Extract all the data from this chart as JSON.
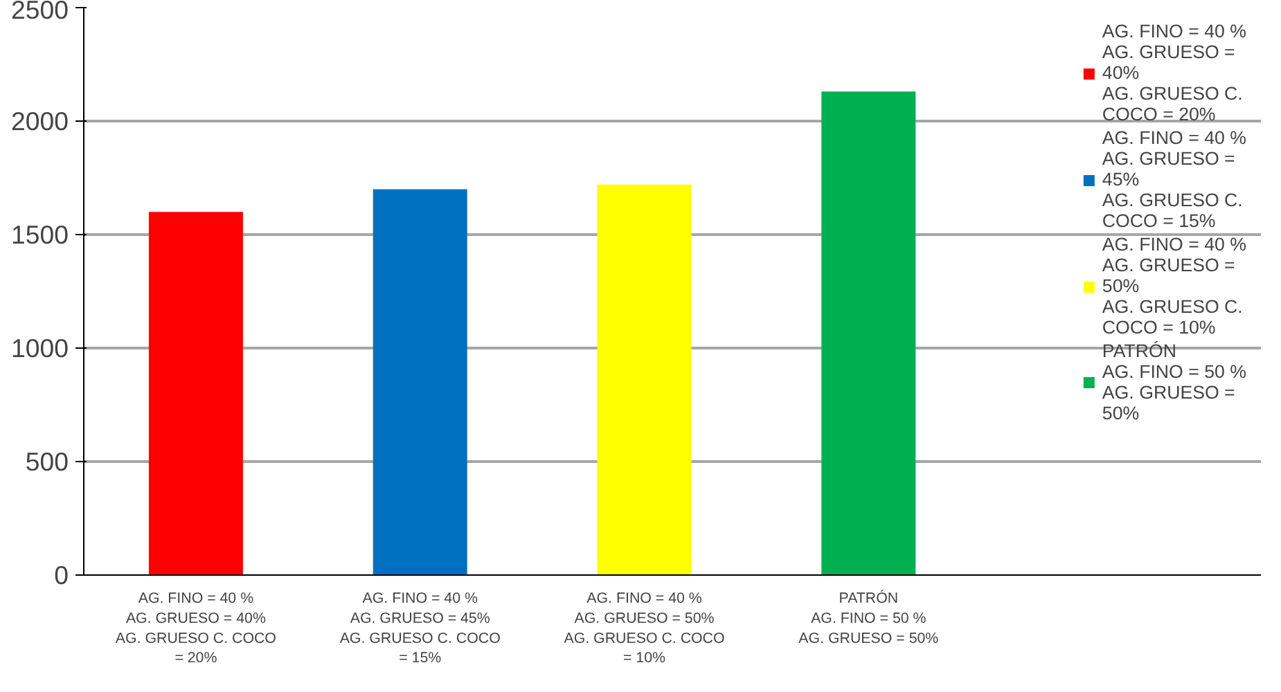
{
  "chart_data": {
    "type": "bar",
    "categories": [
      "AG. FINO = 40 %\nAG. GRUESO = 40%\nAG. GRUESO C. COCO\n= 20%",
      "AG. FINO = 40 %\nAG. GRUESO = 45%\nAG. GRUESO C. COCO\n= 15%",
      "AG. FINO = 40 %\nAG. GRUESO = 50%\nAG. GRUESO C. COCO\n= 10%",
      "PATRÓN\nAG. FINO = 50 %\nAG. GRUESO = 50%"
    ],
    "series": [
      {
        "name": "AG. FINO = 40 %\nAG. GRUESO =\n40%\nAG. GRUESO C.\nCOCO = 20%",
        "color": "#ff0000",
        "values": [
          1600,
          null,
          null,
          null
        ]
      },
      {
        "name": "AG. FINO = 40 %\nAG. GRUESO =\n45%\nAG. GRUESO C.\nCOCO = 15%",
        "color": "#0070c0",
        "values": [
          null,
          1700,
          null,
          null
        ]
      },
      {
        "name": "AG. FINO = 40 %\nAG. GRUESO =\n50%\nAG. GRUESO C.\nCOCO = 10%",
        "color": "#ffff00",
        "values": [
          null,
          null,
          1720,
          null
        ]
      },
      {
        "name": "PATRÓN\nAG. FINO = 50 %\nAG. GRUESO =\n50%",
        "color": "#00b050",
        "values": [
          null,
          null,
          null,
          2130
        ]
      }
    ],
    "ylim": [
      0,
      2500
    ],
    "yticks": [
      0,
      500,
      1000,
      1500,
      2000,
      2500
    ],
    "grid": "y",
    "legend": "right"
  }
}
